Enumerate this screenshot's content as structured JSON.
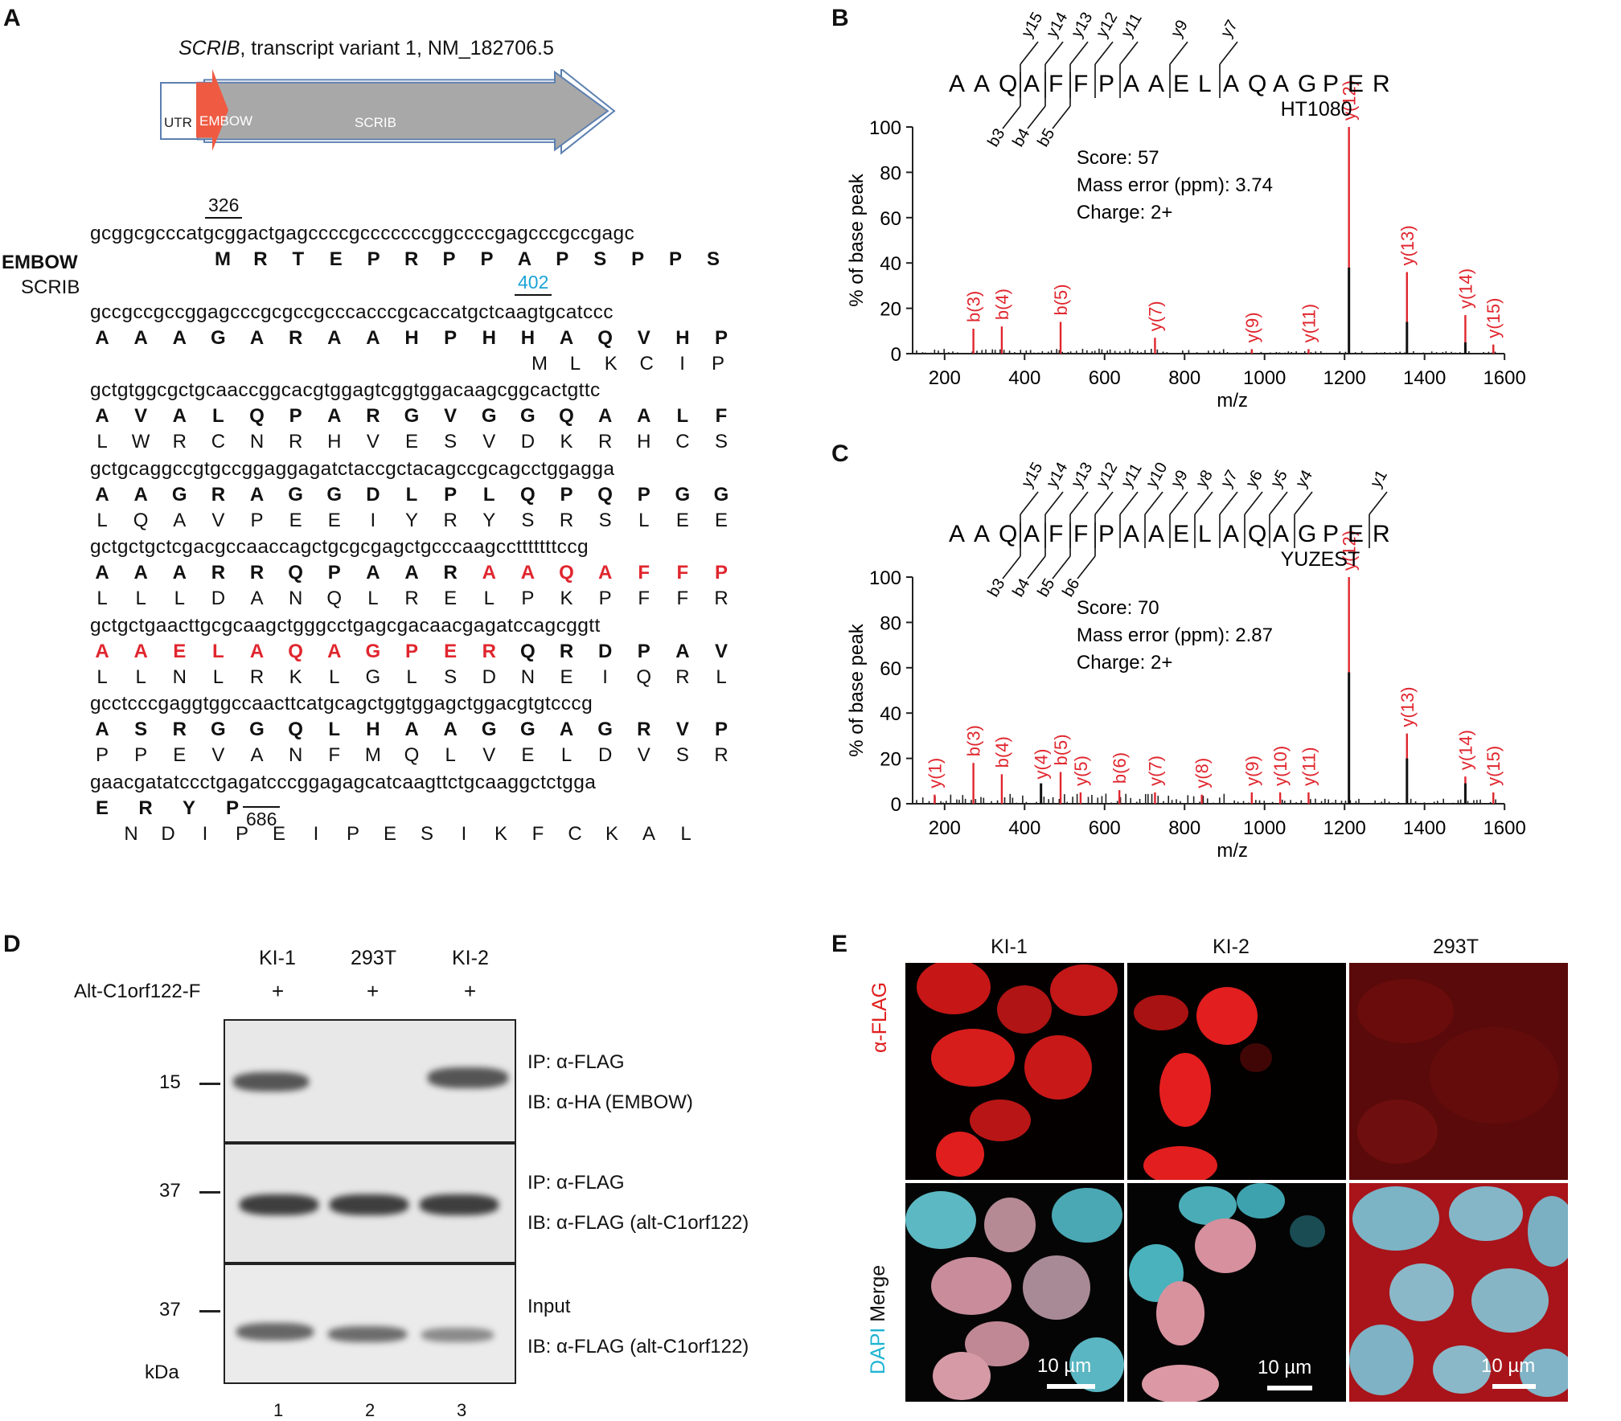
{
  "panels": {
    "a": "A",
    "b": "B",
    "c": "C",
    "d": "D",
    "e": "E"
  },
  "panel_a": {
    "gene_title_italic": "SCRIB",
    "gene_title_rest": ", transcript variant 1, NM_182706.5",
    "seg_utr": "UTR",
    "seg_embow": "EMBOW",
    "seg_scrib": "SCRIB",
    "pos_326": "326",
    "pos_402": "402",
    "pos_686": "686",
    "label_embow": "EMBOW",
    "label_scrib": "SCRIB",
    "rows": [
      {
        "nt": "gcggcgcccatgcggactgagccccgcccccccggccccgagcccgccgagc",
        "aa": [
          "M",
          "R",
          "T",
          "E",
          "P",
          "R",
          "P",
          "P",
          "A",
          "P",
          "S",
          "P",
          "P",
          "S"
        ],
        "sc": []
      },
      {
        "nt": "gccgccgccggagcccgcgccgcccacccgcaccatgctcaagtgcatccc",
        "aa": [
          "A",
          "A",
          "A",
          "G",
          "A",
          "R",
          "A",
          "A",
          "H",
          "P",
          "H",
          "H",
          "A",
          "Q",
          "V",
          "H",
          "P"
        ],
        "sc": [
          "M",
          "L",
          "K",
          "C",
          "I",
          "P"
        ]
      },
      {
        "nt": "gctgtggcgctgcaaccggcacgtggagtcggtggacaagcggcactgttc",
        "aa": [
          "A",
          "V",
          "A",
          "L",
          "Q",
          "P",
          "A",
          "R",
          "G",
          "V",
          "G",
          "G",
          "Q",
          "A",
          "A",
          "L",
          "F"
        ],
        "sc": [
          "L",
          "W",
          "R",
          "C",
          "N",
          "R",
          "H",
          "V",
          "E",
          "S",
          "V",
          "D",
          "K",
          "R",
          "H",
          "C",
          "S"
        ]
      },
      {
        "nt": "gctgcaggccgtgccggaggagatctaccgctacagccgcagcctggagga",
        "aa": [
          "A",
          "A",
          "G",
          "R",
          "A",
          "G",
          "G",
          "D",
          "L",
          "P",
          "L",
          "Q",
          "P",
          "Q",
          "P",
          "G",
          "G"
        ],
        "sc": [
          "L",
          "Q",
          "A",
          "V",
          "P",
          "E",
          "E",
          "I",
          "Y",
          "R",
          "Y",
          "S",
          "R",
          "S",
          "L",
          "E",
          "E"
        ]
      },
      {
        "nt": "gctgctgctcgacgccaaccagctgcgcgagctgcccaagcctttttttccg",
        "aa": [
          "A",
          "A",
          "A",
          "R",
          "R",
          "Q",
          "P",
          "A",
          "A",
          "R",
          "A",
          "A",
          "Q",
          "A",
          "F",
          "F",
          "P"
        ],
        "aa_red_from": 10,
        "sc": [
          "L",
          "L",
          "L",
          "D",
          "A",
          "N",
          "Q",
          "L",
          "R",
          "E",
          "L",
          "P",
          "K",
          "P",
          "F",
          "F",
          "R"
        ]
      },
      {
        "nt": "gctgctgaacttgcgcaagctgggcctgagcgacaacgagatccagcggtt",
        "aa": [
          "A",
          "A",
          "E",
          "L",
          "A",
          "Q",
          "A",
          "G",
          "P",
          "E",
          "R",
          "Q",
          "R",
          "D",
          "P",
          "A",
          "V"
        ],
        "aa_red_to": 10,
        "sc": [
          "L",
          "L",
          "N",
          "L",
          "R",
          "K",
          "L",
          "G",
          "L",
          "S",
          "D",
          "N",
          "E",
          "I",
          "Q",
          "R",
          "L"
        ]
      },
      {
        "nt": "gcctcccgaggtggccaacttcatgcagctggtggagctggacgtgtcccg",
        "aa": [
          "A",
          "S",
          "R",
          "G",
          "G",
          "Q",
          "L",
          "H",
          "A",
          "A",
          "G",
          "G",
          "A",
          "G",
          "R",
          "V",
          "P"
        ],
        "sc": [
          "P",
          "P",
          "E",
          "V",
          "A",
          "N",
          "F",
          "M",
          "Q",
          "L",
          "V",
          "E",
          "L",
          "D",
          "V",
          "S",
          "R"
        ]
      },
      {
        "nt": "gaacgatatccctgagatcccggagagcatcaagttctgcaaggctctgga",
        "aa": [
          "E",
          "R",
          "Y",
          "P"
        ],
        "sc": [
          "N",
          "D",
          "I",
          "P",
          "E",
          "I",
          "P",
          "E",
          "S",
          "I",
          "K",
          "F",
          "C",
          "K",
          "A",
          "L"
        ]
      }
    ]
  },
  "panel_b": {
    "peptide": [
      "A",
      "A",
      "Q",
      "A",
      "F",
      "F",
      "P",
      "A",
      "A",
      "E",
      "L",
      "A",
      "Q",
      "A",
      "G",
      "P",
      "E",
      "R"
    ],
    "y_ions": [
      "y15",
      "y14",
      "y13",
      "y12",
      "y11",
      "y9",
      "y7"
    ],
    "b_ions": [
      "b3",
      "b4",
      "b5"
    ],
    "cell_line": "HT1080",
    "score": "Score: 57",
    "mass_error": "Mass error (ppm): 3.74",
    "charge": "Charge: 2+"
  },
  "panel_c": {
    "peptide": [
      "A",
      "A",
      "Q",
      "A",
      "F",
      "F",
      "P",
      "A",
      "A",
      "E",
      "L",
      "A",
      "Q",
      "A",
      "G",
      "P",
      "E",
      "R"
    ],
    "y_ions": [
      "y15",
      "y14",
      "y13",
      "y12",
      "y11",
      "y10",
      "y9",
      "y8",
      "y7",
      "y6",
      "y5",
      "y4",
      "y1"
    ],
    "b_ions": [
      "b3",
      "b4",
      "b5",
      "b6"
    ],
    "cell_line": "YUZEST",
    "score": "Score: 70",
    "mass_error": "Mass error (ppm): 2.87",
    "charge": "Charge: 2+"
  },
  "chart_data": [
    {
      "type": "bar",
      "title": "",
      "xlabel": "m/z",
      "ylabel": "% of base peak",
      "xlim": [
        120,
        1600
      ],
      "ylim": [
        0,
        100
      ],
      "xticks": [
        200,
        400,
        600,
        800,
        1000,
        1200,
        1400,
        1600
      ],
      "yticks": [
        0,
        20,
        40,
        60,
        80,
        100
      ],
      "labeled_peaks": [
        {
          "label": "b(3)",
          "x": 272,
          "y": 11
        },
        {
          "label": "b(4)",
          "x": 343,
          "y": 12
        },
        {
          "label": "b(5)",
          "x": 490,
          "y": 14
        },
        {
          "label": "y(7)",
          "x": 726,
          "y": 7
        },
        {
          "label": "y(9)",
          "x": 968,
          "y": 2
        },
        {
          "label": "y(11)",
          "x": 1110,
          "y": 2
        },
        {
          "label": "y(12)",
          "x": 1211,
          "y": 100
        },
        {
          "label": "y(13)",
          "x": 1356,
          "y": 36
        },
        {
          "label": "y(14)",
          "x": 1502,
          "y": 17
        },
        {
          "label": "y(15)",
          "x": 1572,
          "y": 4
        }
      ],
      "black_peaks": [
        {
          "x": 1211,
          "y": 38
        },
        {
          "x": 1356,
          "y": 14
        },
        {
          "x": 1502,
          "y": 5
        }
      ]
    },
    {
      "type": "bar",
      "title": "",
      "xlabel": "m/z",
      "ylabel": "% of base peak",
      "xlim": [
        120,
        1600
      ],
      "ylim": [
        0,
        100
      ],
      "xticks": [
        200,
        400,
        600,
        800,
        1000,
        1200,
        1400,
        1600
      ],
      "yticks": [
        0,
        20,
        40,
        60,
        80,
        100
      ],
      "labeled_peaks": [
        {
          "label": "y(1)",
          "x": 175,
          "y": 4
        },
        {
          "label": "b(3)",
          "x": 272,
          "y": 18
        },
        {
          "label": "b(4)",
          "x": 343,
          "y": 13
        },
        {
          "label": "y(4)",
          "x": 441,
          "y": 8
        },
        {
          "label": "b(5)",
          "x": 490,
          "y": 14
        },
        {
          "label": "y(5)",
          "x": 540,
          "y": 5
        },
        {
          "label": "b(6)",
          "x": 637,
          "y": 6
        },
        {
          "label": "y(7)",
          "x": 726,
          "y": 5
        },
        {
          "label": "y(8)",
          "x": 843,
          "y": 4
        },
        {
          "label": "y(9)",
          "x": 968,
          "y": 5
        },
        {
          "label": "y(10)",
          "x": 1039,
          "y": 5
        },
        {
          "label": "y(11)",
          "x": 1110,
          "y": 5
        },
        {
          "label": "y(12)",
          "x": 1211,
          "y": 100
        },
        {
          "label": "y(13)",
          "x": 1356,
          "y": 31
        },
        {
          "label": "y(14)",
          "x": 1502,
          "y": 12
        },
        {
          "label": "y(15)",
          "x": 1572,
          "y": 5
        }
      ],
      "black_peaks": [
        {
          "x": 1211,
          "y": 58
        },
        {
          "x": 1356,
          "y": 20
        },
        {
          "x": 1502,
          "y": 9
        },
        {
          "x": 441,
          "y": 9
        }
      ]
    }
  ],
  "panel_d": {
    "lanes": [
      "KI-1",
      "293T",
      "KI-2"
    ],
    "row_label": "Alt-C1orf122-F",
    "plus": [
      "+",
      "+",
      "+"
    ],
    "blots": [
      {
        "mw": "15",
        "line1": "IP: α-FLAG",
        "line2": "IB: α-HA (EMBOW)"
      },
      {
        "mw": "37",
        "line1": "IP: α-FLAG",
        "line2": "IB: α-FLAG (alt-C1orf122)"
      },
      {
        "mw": "37",
        "line1": "Input",
        "line2": "IB: α-FLAG (alt-C1orf122)"
      }
    ],
    "kda": "kDa",
    "lane_numbers": [
      "1",
      "2",
      "3"
    ]
  },
  "panel_e": {
    "columns": [
      "KI-1",
      "KI-2",
      "293T"
    ],
    "row1_label": "α-FLAG",
    "row2_label_dapi": "DAPI",
    "row2_label_merge": " Merge",
    "scale": "10 µm",
    "colors": {
      "flag": "#e01e1e",
      "dapi": "#3cc4d4"
    }
  }
}
